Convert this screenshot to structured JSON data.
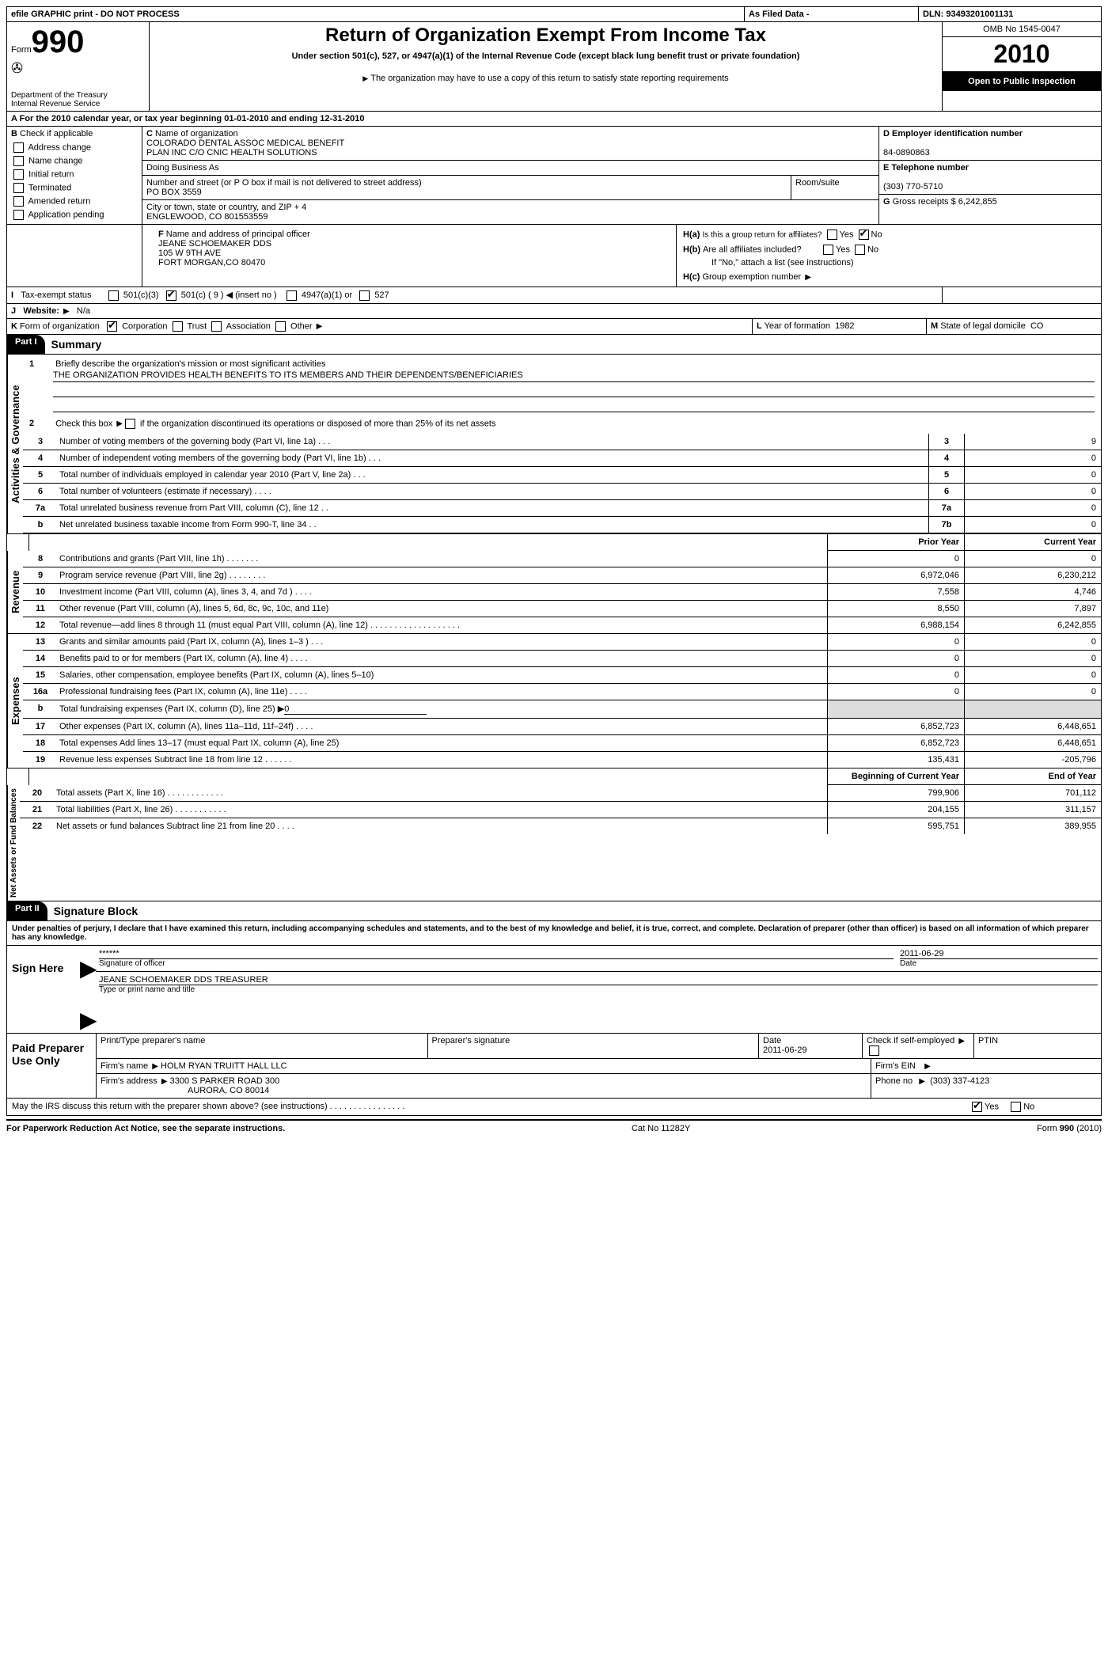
{
  "header": {
    "efile_text": "efile GRAPHIC print - DO NOT PROCESS",
    "as_filed": "As Filed Data -",
    "dln_label": "DLN:",
    "dln": "93493201001131",
    "form_label": "Form",
    "form_num": "990",
    "dept": "Department of the Treasury",
    "irs": "Internal Revenue Service",
    "title": "Return of Organization Exempt From Income Tax",
    "subtitle": "Under section 501(c), 527, or 4947(a)(1) of the Internal Revenue Code (except black lung benefit trust or private foundation)",
    "copy_note": "The organization may have to use a copy of this return to satisfy state reporting requirements",
    "omb": "OMB No 1545-0047",
    "year": "2010",
    "open": "Open to Public Inspection"
  },
  "section_a": {
    "line": "For the 2010 calendar year, or tax year beginning 01-01-2010    and ending 12-31-2010"
  },
  "section_b": {
    "label": "Check if applicable",
    "items": [
      "Address change",
      "Name change",
      "Initial return",
      "Terminated",
      "Amended return",
      "Application pending"
    ]
  },
  "section_c": {
    "label": "Name of organization",
    "name1": "COLORADO DENTAL ASSOC MEDICAL BENEFIT",
    "name2": "PLAN INC C/O CNIC HEALTH SOLUTIONS",
    "dba_label": "Doing Business As",
    "street_label": "Number and street (or P O  box if mail is not delivered to street address)",
    "street": "PO BOX 3559",
    "room_label": "Room/suite",
    "city_label": "City or town, state or country, and ZIP + 4",
    "city": "ENGLEWOOD, CO  801553559"
  },
  "section_d": {
    "label": "Employer identification number",
    "value": "84-0890863"
  },
  "section_e": {
    "label": "Telephone number",
    "value": "(303) 770-5710"
  },
  "section_g": {
    "label": "Gross receipts $",
    "value": "6,242,855"
  },
  "section_f": {
    "label": "Name and address of principal officer",
    "name": "JEANE SCHOEMAKER DDS",
    "addr1": "105 W 9TH AVE",
    "addr2": "FORT MORGAN,CO 80470"
  },
  "section_h": {
    "a": "Is this a group return for affiliates?",
    "b": "Are all affiliates included?",
    "b_note": "If \"No,\" attach a list  (see instructions)",
    "c": "Group exemption number"
  },
  "section_i": {
    "label": "Tax-exempt status",
    "insert": "(insert no )",
    "opts": [
      "501(c)(3)",
      "501(c) ( 9 )",
      "4947(a)(1) or",
      "527"
    ]
  },
  "section_j": {
    "label": "Website:",
    "value": "N/a"
  },
  "section_k": {
    "label": "Form of organization",
    "opts": [
      "Corporation",
      "Trust",
      "Association",
      "Other"
    ]
  },
  "section_l": {
    "label": "Year of formation",
    "value": "1982"
  },
  "section_m": {
    "label": "State of legal domicile",
    "value": "CO"
  },
  "part1": {
    "hdr": "Part I",
    "title": "Summary",
    "q1": "Briefly describe the organization's mission or most significant activities",
    "mission": "THE ORGANIZATION PROVIDES HEALTH BENEFITS TO ITS MEMBERS AND THEIR DEPENDENTS/BENEFICIARIES",
    "q2": "Check this box",
    "q2b": "if the organization discontinued its operations or disposed of more than 25% of its net assets",
    "lines_gov": [
      {
        "n": "3",
        "d": "Number of voting members of the governing body (Part VI, line 1a)   .    .    .",
        "b": "3",
        "v": "9"
      },
      {
        "n": "4",
        "d": "Number of independent voting members of the governing body (Part VI, line 1b)   .    .    .",
        "b": "4",
        "v": "0"
      },
      {
        "n": "5",
        "d": "Total number of individuals employed in calendar year 2010 (Part V, line 2a)   .    .    .",
        "b": "5",
        "v": "0"
      },
      {
        "n": "6",
        "d": "Total number of volunteers (estimate if necessary)   .    .    .    .",
        "b": "6",
        "v": "0"
      },
      {
        "n": "7a",
        "d": "Total unrelated business revenue from Part VIII, column (C), line 12   .    .",
        "b": "7a",
        "v": "0"
      },
      {
        "n": "b",
        "d": "Net unrelated business taxable income from Form 990-T, line 34   .    .",
        "b": "7b",
        "v": "0"
      }
    ],
    "col_prior": "Prior Year",
    "col_current": "Current Year",
    "col_begin": "Beginning of Current Year",
    "col_end": "End of Year",
    "lines_rev": [
      {
        "n": "8",
        "d": "Contributions and grants (Part VIII, line 1h)   .    .    .    .    .    .    .",
        "p": "0",
        "c": "0"
      },
      {
        "n": "9",
        "d": "Program service revenue (Part VIII, line 2g)   .    .    .    .    .    .    .    .",
        "p": "6,972,046",
        "c": "6,230,212"
      },
      {
        "n": "10",
        "d": "Investment income (Part VIII, column (A), lines 3, 4, and 7d )   .    .    .    .",
        "p": "7,558",
        "c": "4,746"
      },
      {
        "n": "11",
        "d": "Other revenue (Part VIII, column (A), lines 5, 6d, 8c, 9c, 10c, and 11e)",
        "p": "8,550",
        "c": "7,897"
      },
      {
        "n": "12",
        "d": "Total revenue—add lines 8 through 11 (must equal Part VIII, column (A), line 12)  .    .    .    .    .    .    .    .    .    .    .    .    .    .    .    .    .    .    .",
        "p": "6,988,154",
        "c": "6,242,855"
      }
    ],
    "lines_exp": [
      {
        "n": "13",
        "d": "Grants and similar amounts paid (Part IX, column (A), lines 1–3 )   .    .    .",
        "p": "0",
        "c": "0"
      },
      {
        "n": "14",
        "d": "Benefits paid to or for members (Part IX, column (A), line 4)   .    .    .    .",
        "p": "0",
        "c": "0"
      },
      {
        "n": "15",
        "d": "Salaries, other compensation, employee benefits (Part IX, column (A), lines 5–10)",
        "p": "0",
        "c": "0"
      },
      {
        "n": "16a",
        "d": "Professional fundraising fees (Part IX, column (A), line 11e)   .    .    .    .",
        "p": "0",
        "c": "0"
      },
      {
        "n": "b",
        "d": "Total fundraising expenses (Part IX, column (D), line 25) ▶",
        "p": "",
        "c": "",
        "noval": true,
        "under": "0"
      },
      {
        "n": "17",
        "d": "Other expenses (Part IX, column (A), lines 11a–11d, 11f–24f)   .    .    .    .",
        "p": "6,852,723",
        "c": "6,448,651"
      },
      {
        "n": "18",
        "d": "Total expenses  Add lines 13–17 (must equal Part IX, column (A), line 25)",
        "p": "6,852,723",
        "c": "6,448,651"
      },
      {
        "n": "19",
        "d": "Revenue less expenses  Subtract line 18 from line 12   .    .    .    .    .    .",
        "p": "135,431",
        "c": "-205,796"
      }
    ],
    "lines_net": [
      {
        "n": "20",
        "d": "Total assets (Part X, line 16)   .    .    .    .    .    .    .    .    .    .    .    .",
        "p": "799,906",
        "c": "701,112"
      },
      {
        "n": "21",
        "d": "Total liabilities (Part X, line 26)   .    .    .    .    .    .    .    .    .    .    .",
        "p": "204,155",
        "c": "311,157"
      },
      {
        "n": "22",
        "d": "Net assets or fund balances  Subtract line 21 from line 20   .    .    .    .",
        "p": "595,751",
        "c": "389,955"
      }
    ],
    "vlabels": {
      "gov": "Activities & Governance",
      "rev": "Revenue",
      "exp": "Expenses",
      "net": "Net Assets or Fund Balances"
    }
  },
  "part2": {
    "hdr": "Part II",
    "title": "Signature Block",
    "perjury": "Under penalties of perjury, I declare that I have examined this return, including accompanying schedules and statements, and to the best of my knowledge and belief, it is true, correct, and complete. Declaration of preparer (other than officer) is based on all information of which preparer has any knowledge.",
    "sign_here": "Sign Here",
    "sig_stars": "******",
    "sig_date": "2011-06-29",
    "sig_of_officer": "Signature of officer",
    "date_lbl": "Date",
    "officer_name": "JEANE SCHOEMAKER DDS TREASURER",
    "type_name": "Type or print name and title",
    "paid": "Paid Preparer Use Only",
    "prep_name_lbl": "Print/Type preparer's name",
    "prep_sig_lbl": "Preparer's signature",
    "prep_date": "2011-06-29",
    "self_lbl": "Check if self-employed",
    "ptin_lbl": "PTIN",
    "firm_name_lbl": "Firm's name",
    "firm_name": "HOLM RYAN TRUITT HALL LLC",
    "firm_ein_lbl": "Firm's EIN",
    "firm_addr_lbl": "Firm's address",
    "firm_addr1": "3300 S PARKER ROAD 300",
    "firm_addr2": "AURORA, CO  80014",
    "phone_lbl": "Phone no",
    "phone": "(303) 337-4123",
    "discuss": "May the IRS discuss this return with the preparer shown above? (see instructions)   .    .    .    .    .    .    .    .    .    .    .    .    .    .    .    ."
  },
  "footer": {
    "left": "For Paperwork Reduction Act Notice, see the separate instructions.",
    "mid": "Cat  No  11282Y",
    "right": "Form 990 (2010)"
  },
  "yn": {
    "yes": "Yes",
    "no": "No"
  }
}
